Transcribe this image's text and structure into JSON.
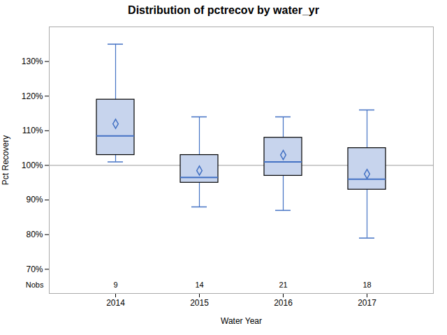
{
  "chart_data": {
    "type": "box",
    "title": "Distribution of pctrecov by water_yr",
    "xlabel": "Water Year",
    "ylabel": "Pct Recovery",
    "categories": [
      "2014",
      "2015",
      "2016",
      "2017"
    ],
    "q1": [
      103,
      95,
      97,
      93
    ],
    "median": [
      108.5,
      96.5,
      101,
      96
    ],
    "q3": [
      119,
      103,
      108,
      105
    ],
    "whislo": [
      101,
      88,
      87,
      79
    ],
    "whishi": [
      135,
      114,
      114,
      116
    ],
    "mean": [
      112,
      98.5,
      103,
      97.5
    ],
    "nobs_label": "Nobs",
    "nobs": [
      9,
      14,
      21,
      18
    ],
    "reference_y": 100,
    "ylim": [
      63,
      140
    ],
    "yticks": [
      {
        "value": 70,
        "label": "70%"
      },
      {
        "value": 80,
        "label": "80%"
      },
      {
        "value": 90,
        "label": "90%"
      },
      {
        "value": 100,
        "label": "100%"
      },
      {
        "value": 110,
        "label": "110%"
      },
      {
        "value": 120,
        "label": "120%"
      },
      {
        "value": 130,
        "label": "130%"
      }
    ],
    "color": "#4472c4",
    "marker": "diamond",
    "grid": false
  }
}
